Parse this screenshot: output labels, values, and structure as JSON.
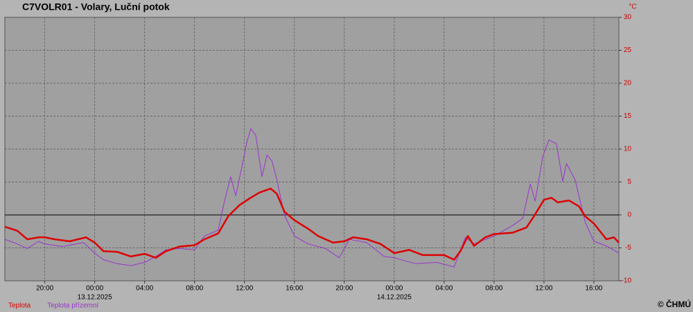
{
  "chart_data": {
    "type": "line",
    "title": "C7VOLR01 - Volary, Luční potok",
    "y_unit": "°C",
    "copyright": "© ČHMÚ",
    "xlim": [
      -7.2,
      42
    ],
    "xticks": [
      {
        "value": -4,
        "label": "20:00"
      },
      {
        "value": 0,
        "label": "00:00"
      },
      {
        "value": 4,
        "label": "04:00"
      },
      {
        "value": 8,
        "label": "08:00"
      },
      {
        "value": 12,
        "label": "12:00"
      },
      {
        "value": 16,
        "label": "16:00"
      },
      {
        "value": 20,
        "label": "20:00"
      },
      {
        "value": 24,
        "label": "00:00"
      },
      {
        "value": 28,
        "label": "04:00"
      },
      {
        "value": 32,
        "label": "08:00"
      },
      {
        "value": 36,
        "label": "12:00"
      },
      {
        "value": 40,
        "label": "16:00"
      }
    ],
    "date_labels": [
      {
        "value": 0,
        "label": "13.12.2025"
      },
      {
        "value": 24,
        "label": "14.12.2025"
      }
    ],
    "ylim": [
      -10,
      30
    ],
    "yticks": [
      -10,
      -5,
      0,
      5,
      10,
      15,
      20,
      25,
      30
    ],
    "grid": true,
    "zero_line": true,
    "legend": "bottom-left",
    "series": [
      {
        "name": "Teplota",
        "color": "#dd0000",
        "x": [
          -7.2,
          -6.2,
          -5.4,
          -4.5,
          -4,
          -3.2,
          -2,
          -0.7,
          0,
          0.7,
          1.8,
          2.9,
          4,
          4.9,
          5.7,
          6.8,
          8,
          8.8,
          9.9,
          10.7,
          11.6,
          12.4,
          13.2,
          14.1,
          14.6,
          15.2,
          16,
          17.1,
          17.9,
          19.1,
          20,
          20.7,
          21.8,
          22.9,
          24,
          25.2,
          26.3,
          28,
          28.8,
          29.3,
          29.9,
          30.4,
          31.3,
          32,
          33.5,
          34.6,
          35.2,
          36,
          36.6,
          37.1,
          38,
          38.8,
          39.3,
          40,
          41,
          41.6,
          42
        ],
        "values": [
          -1.8,
          -2.4,
          -3.7,
          -3.4,
          -3.4,
          -3.7,
          -4.0,
          -3.4,
          -4.2,
          -5.5,
          -5.6,
          -6.3,
          -5.9,
          -6.5,
          -5.5,
          -4.8,
          -4.6,
          -3.7,
          -2.8,
          -0.2,
          1.5,
          2.5,
          3.4,
          4.0,
          3.2,
          0.5,
          -0.8,
          -2.1,
          -3.2,
          -4.2,
          -4.0,
          -3.4,
          -3.7,
          -4.4,
          -5.8,
          -5.3,
          -6.1,
          -6.1,
          -6.8,
          -5.5,
          -3.2,
          -4.7,
          -3.4,
          -2.9,
          -2.7,
          -1.9,
          -0.2,
          2.3,
          2.6,
          1.9,
          2.2,
          1.3,
          -0.2,
          -1.3,
          -3.7,
          -3.4,
          -4.2
        ]
      },
      {
        "name": "Teplota přízemní",
        "color": "#9933cc",
        "x": [
          -7.2,
          -6.2,
          -5.4,
          -4.5,
          -4,
          -2.6,
          -0.9,
          0,
          0.7,
          1.8,
          2.9,
          4,
          4.9,
          5.7,
          6.8,
          8,
          8.8,
          9.9,
          10.4,
          10.9,
          11.3,
          11.8,
          12.2,
          12.5,
          12.9,
          13.4,
          13.8,
          14.2,
          14.6,
          15.2,
          16,
          17.1,
          18.5,
          19.6,
          20.4,
          21.8,
          23.2,
          24,
          25.7,
          27.4,
          28.8,
          29.7,
          30.4,
          32,
          33.5,
          34.3,
          34.9,
          35.3,
          35.9,
          36.4,
          37,
          37.5,
          37.8,
          38.5,
          39.3,
          40,
          41,
          42
        ],
        "values": [
          -3.7,
          -4.4,
          -5.1,
          -4.0,
          -4.4,
          -4.8,
          -4.2,
          -5.8,
          -6.8,
          -7.4,
          -7.7,
          -7.2,
          -6.3,
          -5.3,
          -5.1,
          -5.3,
          -3.2,
          -2.3,
          2.1,
          5.8,
          2.9,
          7.4,
          11.1,
          13.1,
          12.1,
          5.8,
          9.1,
          8.2,
          5.3,
          0,
          -3.2,
          -4.4,
          -5.1,
          -6.5,
          -3.7,
          -4.2,
          -6.3,
          -6.5,
          -7.4,
          -7.2,
          -7.9,
          -3.4,
          -4.4,
          -3.2,
          -1.6,
          -0.5,
          4.7,
          2.1,
          8.9,
          11.4,
          10.8,
          5.1,
          7.8,
          5.3,
          -1.1,
          -4.0,
          -4.7,
          -5.8
        ]
      }
    ]
  }
}
